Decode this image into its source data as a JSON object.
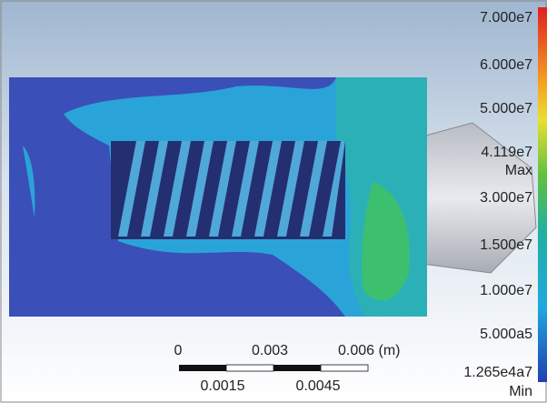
{
  "legend": {
    "levels": [
      "7.000e7",
      "6.000e7",
      "5.000e7",
      "4.119e7",
      "3.000e7",
      "1.500e7",
      "1.000e7",
      "5.000a5",
      "1.265e4a7"
    ],
    "max_tag": "Max",
    "min_tag": "Min"
  },
  "scale_bar": {
    "top_labels": [
      "0",
      "0.003",
      "0.006 (m)"
    ],
    "bottom_labels": [
      "0.0015",
      "0.0045"
    ]
  }
}
